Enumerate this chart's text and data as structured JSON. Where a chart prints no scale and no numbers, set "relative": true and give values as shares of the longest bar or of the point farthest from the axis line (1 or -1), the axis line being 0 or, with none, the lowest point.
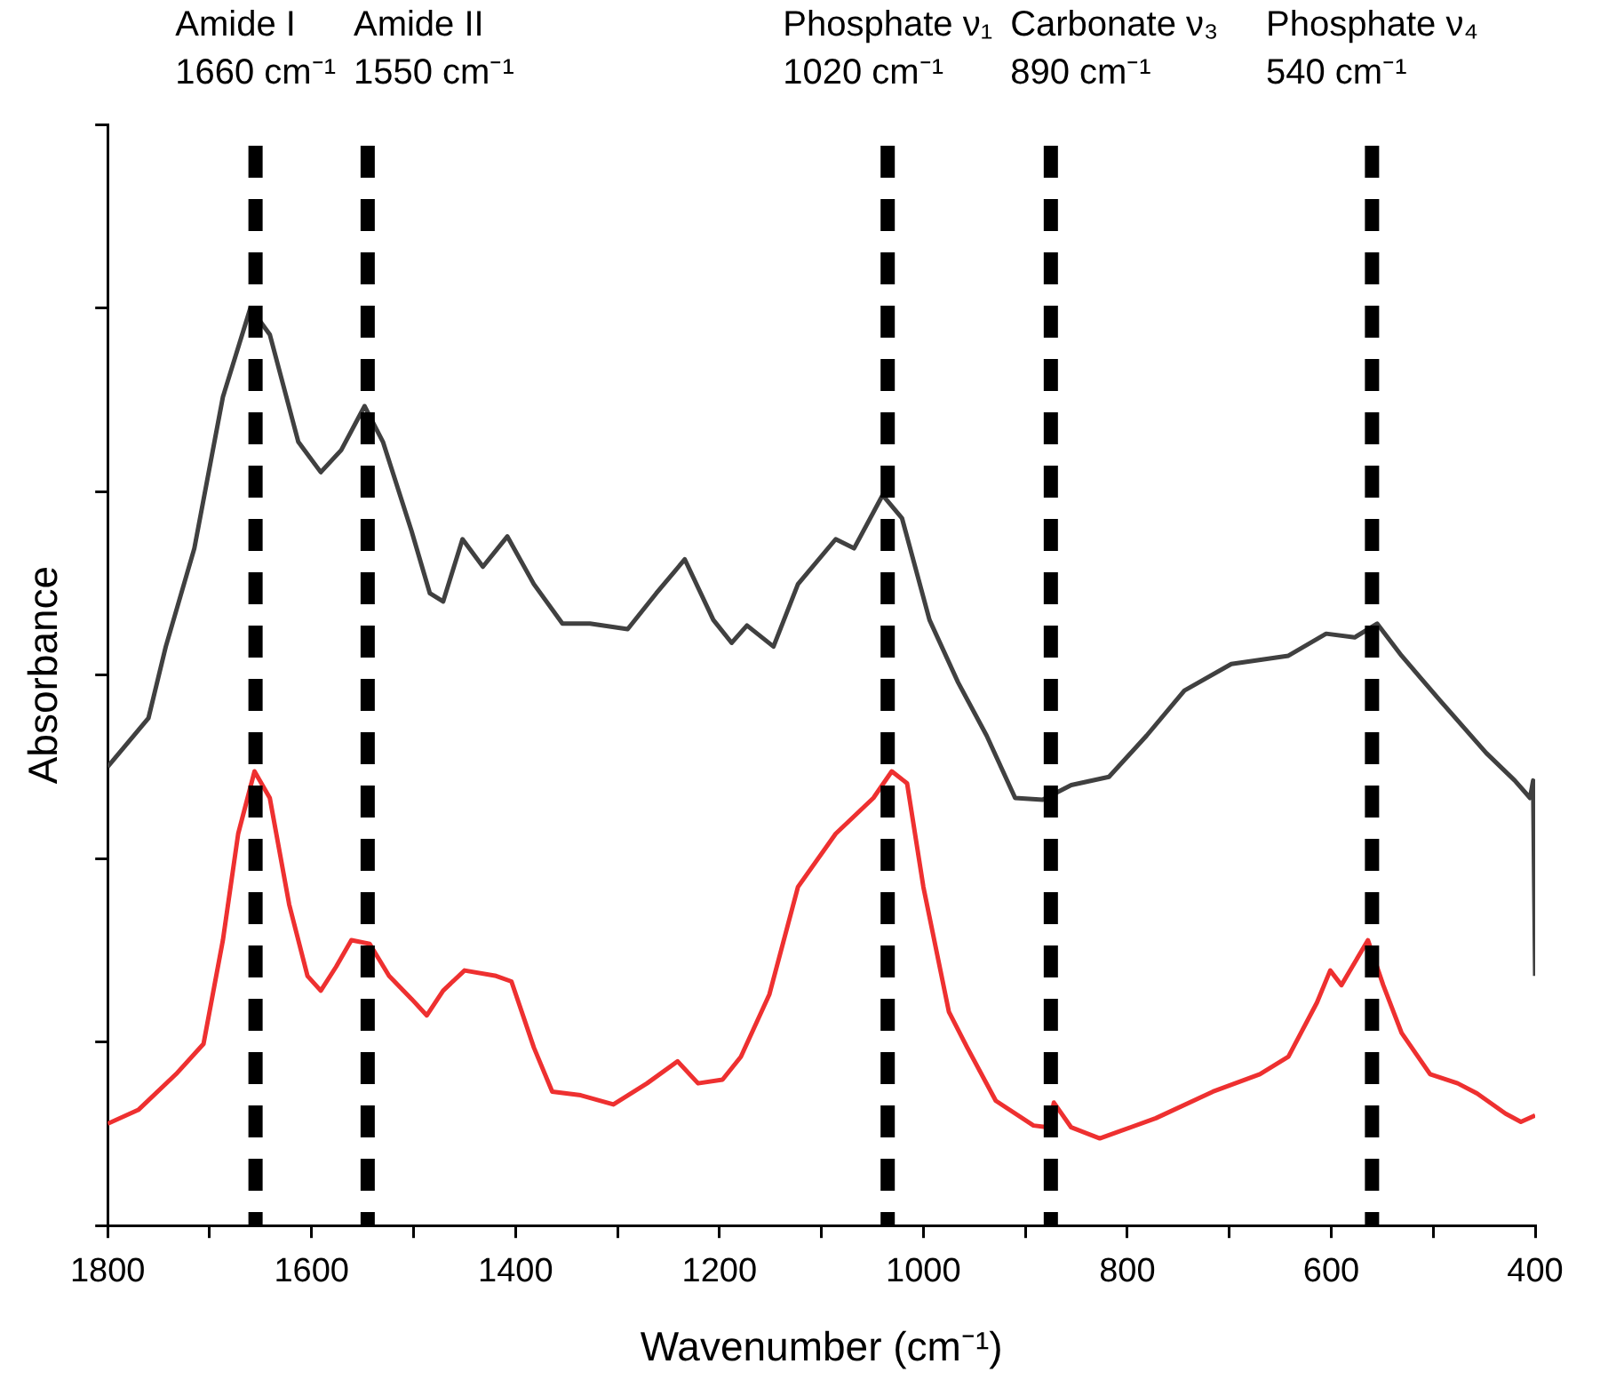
{
  "chart_data": {
    "type": "line",
    "xlabel": "Wavenumber (cm⁻¹)",
    "ylabel": "Absorbance",
    "relative": true,
    "tick_labels": "x",
    "grid": false,
    "legend": false,
    "marker": "none",
    "line_style": "solid",
    "xlim": [
      1800,
      400
    ],
    "xticks": [
      1800,
      {
        "value": 1700,
        "label": null
      },
      1600,
      {
        "value": 1500,
        "label": null
      },
      1400,
      {
        "value": 1300,
        "label": null
      },
      1200,
      {
        "value": 1100,
        "label": null
      },
      1000,
      {
        "value": 900,
        "label": null
      },
      800,
      {
        "value": 700,
        "label": null
      },
      600,
      {
        "value": 500,
        "label": null
      },
      400
    ],
    "series": [
      {
        "color": "#404040",
        "x": [
          1800,
          1760,
          1743,
          1715,
          1687,
          1660,
          1641,
          1613,
          1591,
          1571,
          1548,
          1530,
          1502,
          1484,
          1471,
          1452,
          1432,
          1408,
          1382,
          1354,
          1327,
          1290,
          1262,
          1234,
          1206,
          1188,
          1173,
          1147,
          1123,
          1086,
          1068,
          1040,
          1021,
          994,
          966,
          938,
          910,
          883,
          855,
          818,
          781,
          744,
          698,
          642,
          605,
          577,
          555,
          531,
          494,
          448,
          420,
          405,
          402,
          400
        ],
        "values": [
          0.5,
          0.553,
          0.631,
          0.738,
          0.903,
          1.0,
          0.971,
          0.854,
          0.821,
          0.845,
          0.893,
          0.854,
          0.757,
          0.689,
          0.68,
          0.748,
          0.718,
          0.751,
          0.699,
          0.656,
          0.656,
          0.65,
          0.689,
          0.726,
          0.66,
          0.635,
          0.654,
          0.631,
          0.699,
          0.748,
          0.738,
          0.796,
          0.771,
          0.66,
          0.592,
          0.534,
          0.466,
          0.464,
          0.48,
          0.489,
          0.534,
          0.583,
          0.612,
          0.621,
          0.645,
          0.641,
          0.656,
          0.621,
          0.573,
          0.515,
          0.485,
          0.466,
          0.485,
          0.272
        ]
      },
      {
        "color": "#ee3030",
        "x": [
          1800,
          1770,
          1733,
          1706,
          1687,
          1672,
          1656,
          1641,
          1622,
          1604,
          1591,
          1576,
          1561,
          1543,
          1524,
          1502,
          1487,
          1471,
          1450,
          1419,
          1404,
          1382,
          1364,
          1336,
          1304,
          1271,
          1241,
          1221,
          1197,
          1179,
          1151,
          1123,
          1086,
          1049,
          1031,
          1016,
          1000,
          975,
          957,
          929,
          892,
          877,
          872,
          855,
          827,
          772,
          716,
          670,
          642,
          614,
          601,
          590,
          564,
          549,
          531,
          503,
          476,
          457,
          429,
          414,
          400
        ],
        "values": [
          0.111,
          0.126,
          0.165,
          0.198,
          0.311,
          0.427,
          0.495,
          0.466,
          0.35,
          0.272,
          0.256,
          0.282,
          0.311,
          0.307,
          0.272,
          0.247,
          0.229,
          0.256,
          0.278,
          0.272,
          0.266,
          0.194,
          0.146,
          0.142,
          0.132,
          0.155,
          0.179,
          0.155,
          0.159,
          0.184,
          0.252,
          0.369,
          0.427,
          0.466,
          0.495,
          0.482,
          0.369,
          0.233,
          0.194,
          0.136,
          0.109,
          0.107,
          0.134,
          0.107,
          0.095,
          0.117,
          0.146,
          0.165,
          0.184,
          0.243,
          0.278,
          0.262,
          0.311,
          0.262,
          0.21,
          0.165,
          0.155,
          0.144,
          0.122,
          0.113,
          0.12
        ]
      }
    ],
    "ref_lines": [
      {
        "axis": "x",
        "value": 1655,
        "label": "Amide I\n1660 cm⁻¹",
        "color": "#000000",
        "line_style": "dashed"
      },
      {
        "axis": "x",
        "value": 1545,
        "label": "Amide II\n1550 cm⁻¹",
        "color": "#000000",
        "line_style": "dashed"
      },
      {
        "axis": "x",
        "value": 1035,
        "label": "Phosphate ν₁\n1020 cm⁻¹",
        "color": "#000000",
        "line_style": "dashed"
      },
      {
        "axis": "x",
        "value": 875,
        "label": "Carbonate ν₃\n890 cm⁻¹",
        "color": "#000000",
        "line_style": "dashed"
      },
      {
        "axis": "x",
        "value": 560,
        "label": "Phosphate ν₄\n540 cm⁻¹",
        "color": "#000000",
        "line_style": "dashed"
      }
    ]
  }
}
